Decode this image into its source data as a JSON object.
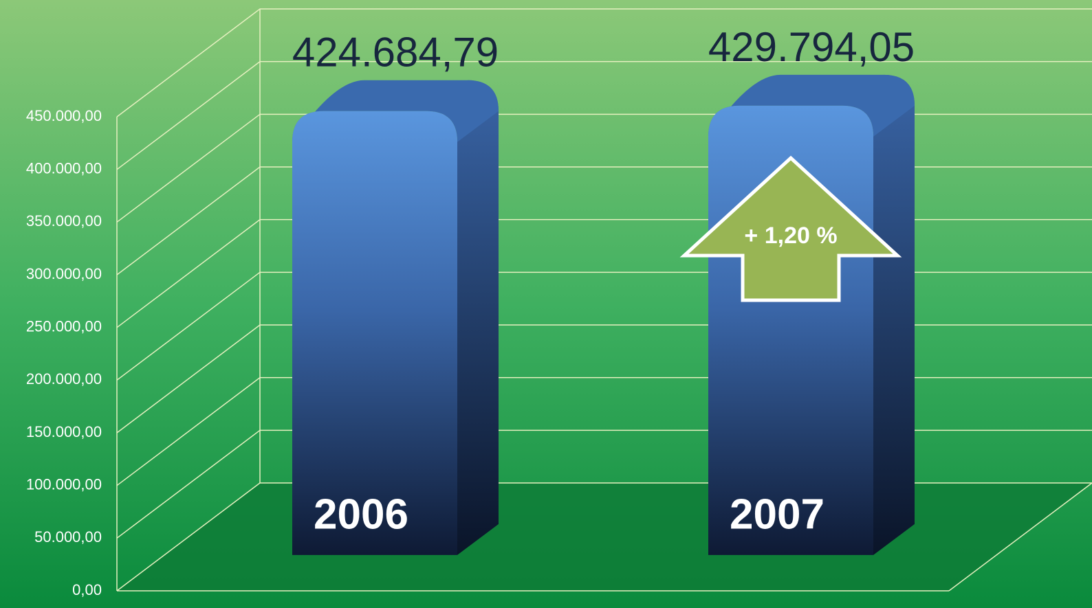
{
  "chart_data": {
    "type": "bar3d",
    "categories": [
      "2006",
      "2007"
    ],
    "values": [
      424684.79,
      429794.05
    ],
    "value_labels": [
      "424.684,79",
      "429.794,05"
    ],
    "color": "#3f6fb5",
    "ylim": [
      0,
      450000
    ],
    "yticks": [
      {
        "value": 0,
        "label": "0,00"
      },
      {
        "value": 50000,
        "label": "50.000,00"
      },
      {
        "value": 100000,
        "label": "100.000,00"
      },
      {
        "value": 150000,
        "label": "150.000,00"
      },
      {
        "value": 200000,
        "label": "200.000,00"
      },
      {
        "value": 250000,
        "label": "250.000,00"
      },
      {
        "value": 300000,
        "label": "300.000,00"
      },
      {
        "value": 350000,
        "label": "350.000,00"
      },
      {
        "value": 400000,
        "label": "400.000,00"
      },
      {
        "value": 450000,
        "label": "450.000,00"
      }
    ],
    "grid": true,
    "annotation": "+ 1,20 %"
  }
}
